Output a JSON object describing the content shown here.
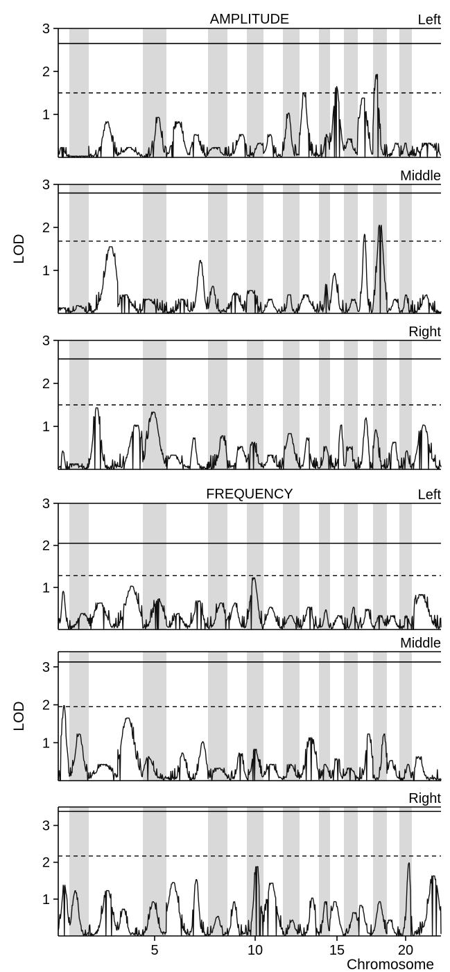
{
  "chart_data": {
    "type": "line",
    "x_axis": {
      "label": "Chromosome",
      "chromosome_count": 21,
      "tick_labels": [
        "5",
        "10",
        "15",
        "20"
      ],
      "tick_chromosomes": [
        5,
        10,
        15,
        20
      ]
    },
    "y_label": "LOD",
    "shaded_chromosomes": [
      2,
      5,
      8,
      10,
      12,
      14,
      16,
      18,
      20
    ],
    "sections": [
      {
        "title": "AMPLITUDE"
      },
      {
        "title": "FREQUENCY"
      }
    ],
    "panels": [
      {
        "section": "AMPLITUDE",
        "label": "Left",
        "show_y_label": false,
        "ylim": [
          0,
          3
        ],
        "y_ticks": [
          "1",
          "2",
          "3"
        ],
        "significant_threshold": 2.65,
        "suggestive_threshold": 1.5,
        "peaks_by_chromosome": [
          0.2,
          0.0,
          0.8,
          0.2,
          0.9,
          0.8,
          0.5,
          0.2,
          0.5,
          0.3,
          0.5,
          1.0,
          1.45,
          0.5,
          1.62,
          0.4,
          1.35,
          1.9,
          0.3,
          0.3,
          0.3
        ]
      },
      {
        "section": "AMPLITUDE",
        "label": "Middle",
        "show_y_label": true,
        "ylim": [
          0,
          3
        ],
        "y_ticks": [
          "1",
          "2",
          "3"
        ],
        "significant_threshold": 2.8,
        "suggestive_threshold": 1.68,
        "peaks_by_chromosome": [
          0.1,
          0.15,
          1.52,
          0.4,
          0.3,
          0.3,
          1.2,
          0.6,
          0.45,
          0.5,
          0.3,
          0.4,
          0.4,
          0.7,
          0.9,
          0.3,
          1.82,
          2.02,
          0.3,
          0.4,
          0.4
        ]
      },
      {
        "section": "AMPLITUDE",
        "label": "Right",
        "show_y_label": false,
        "ylim": [
          0,
          3
        ],
        "y_ticks": [
          "1",
          "2",
          "3"
        ],
        "significant_threshold": 2.57,
        "suggestive_threshold": 1.5,
        "peaks_by_chromosome": [
          0.4,
          0.1,
          1.4,
          1.0,
          1.3,
          0.3,
          0.7,
          0.75,
          0.5,
          0.6,
          0.3,
          0.8,
          0.7,
          0.5,
          1.0,
          0.5,
          1.17,
          0.9,
          0.6,
          0.4,
          1.0
        ]
      },
      {
        "section": "FREQUENCY",
        "label": "Left",
        "show_y_label": false,
        "ylim": [
          0,
          3
        ],
        "y_ticks": [
          "1",
          "2",
          "3"
        ],
        "significant_threshold": 2.05,
        "suggestive_threshold": 1.28,
        "peaks_by_chromosome": [
          0.88,
          0.35,
          0.6,
          1.0,
          0.7,
          0.35,
          0.65,
          0.6,
          0.6,
          1.2,
          0.5,
          0.3,
          0.5,
          0.45,
          0.3,
          0.5,
          0.45,
          0.3,
          0.3,
          0.3,
          0.8
        ]
      },
      {
        "section": "FREQUENCY",
        "label": "Middle",
        "show_y_label": true,
        "ylim": [
          0,
          3.4
        ],
        "y_ticks": [
          "1",
          "2",
          "3"
        ],
        "significant_threshold": 3.13,
        "suggestive_threshold": 1.95,
        "peaks_by_chromosome": [
          1.95,
          1.2,
          0.4,
          1.62,
          0.6,
          0.7,
          1.0,
          0.3,
          0.7,
          0.8,
          0.4,
          0.4,
          1.1,
          0.4,
          0.55,
          0.3,
          1.2,
          1.2,
          0.5,
          0.4,
          0.6
        ]
      },
      {
        "section": "FREQUENCY",
        "label": "Right",
        "show_y_label": false,
        "ylim": [
          0,
          3.5
        ],
        "y_ticks": [
          "1",
          "2",
          "3"
        ],
        "significant_threshold": 3.38,
        "suggestive_threshold": 2.17,
        "peaks_by_chromosome": [
          1.35,
          1.2,
          1.2,
          0.7,
          0.9,
          1.42,
          1.5,
          0.5,
          0.9,
          1.85,
          1.4,
          0.4,
          1.0,
          0.9,
          0.9,
          0.6,
          0.8,
          0.9,
          0.4,
          1.95,
          1.6
        ]
      }
    ]
  }
}
